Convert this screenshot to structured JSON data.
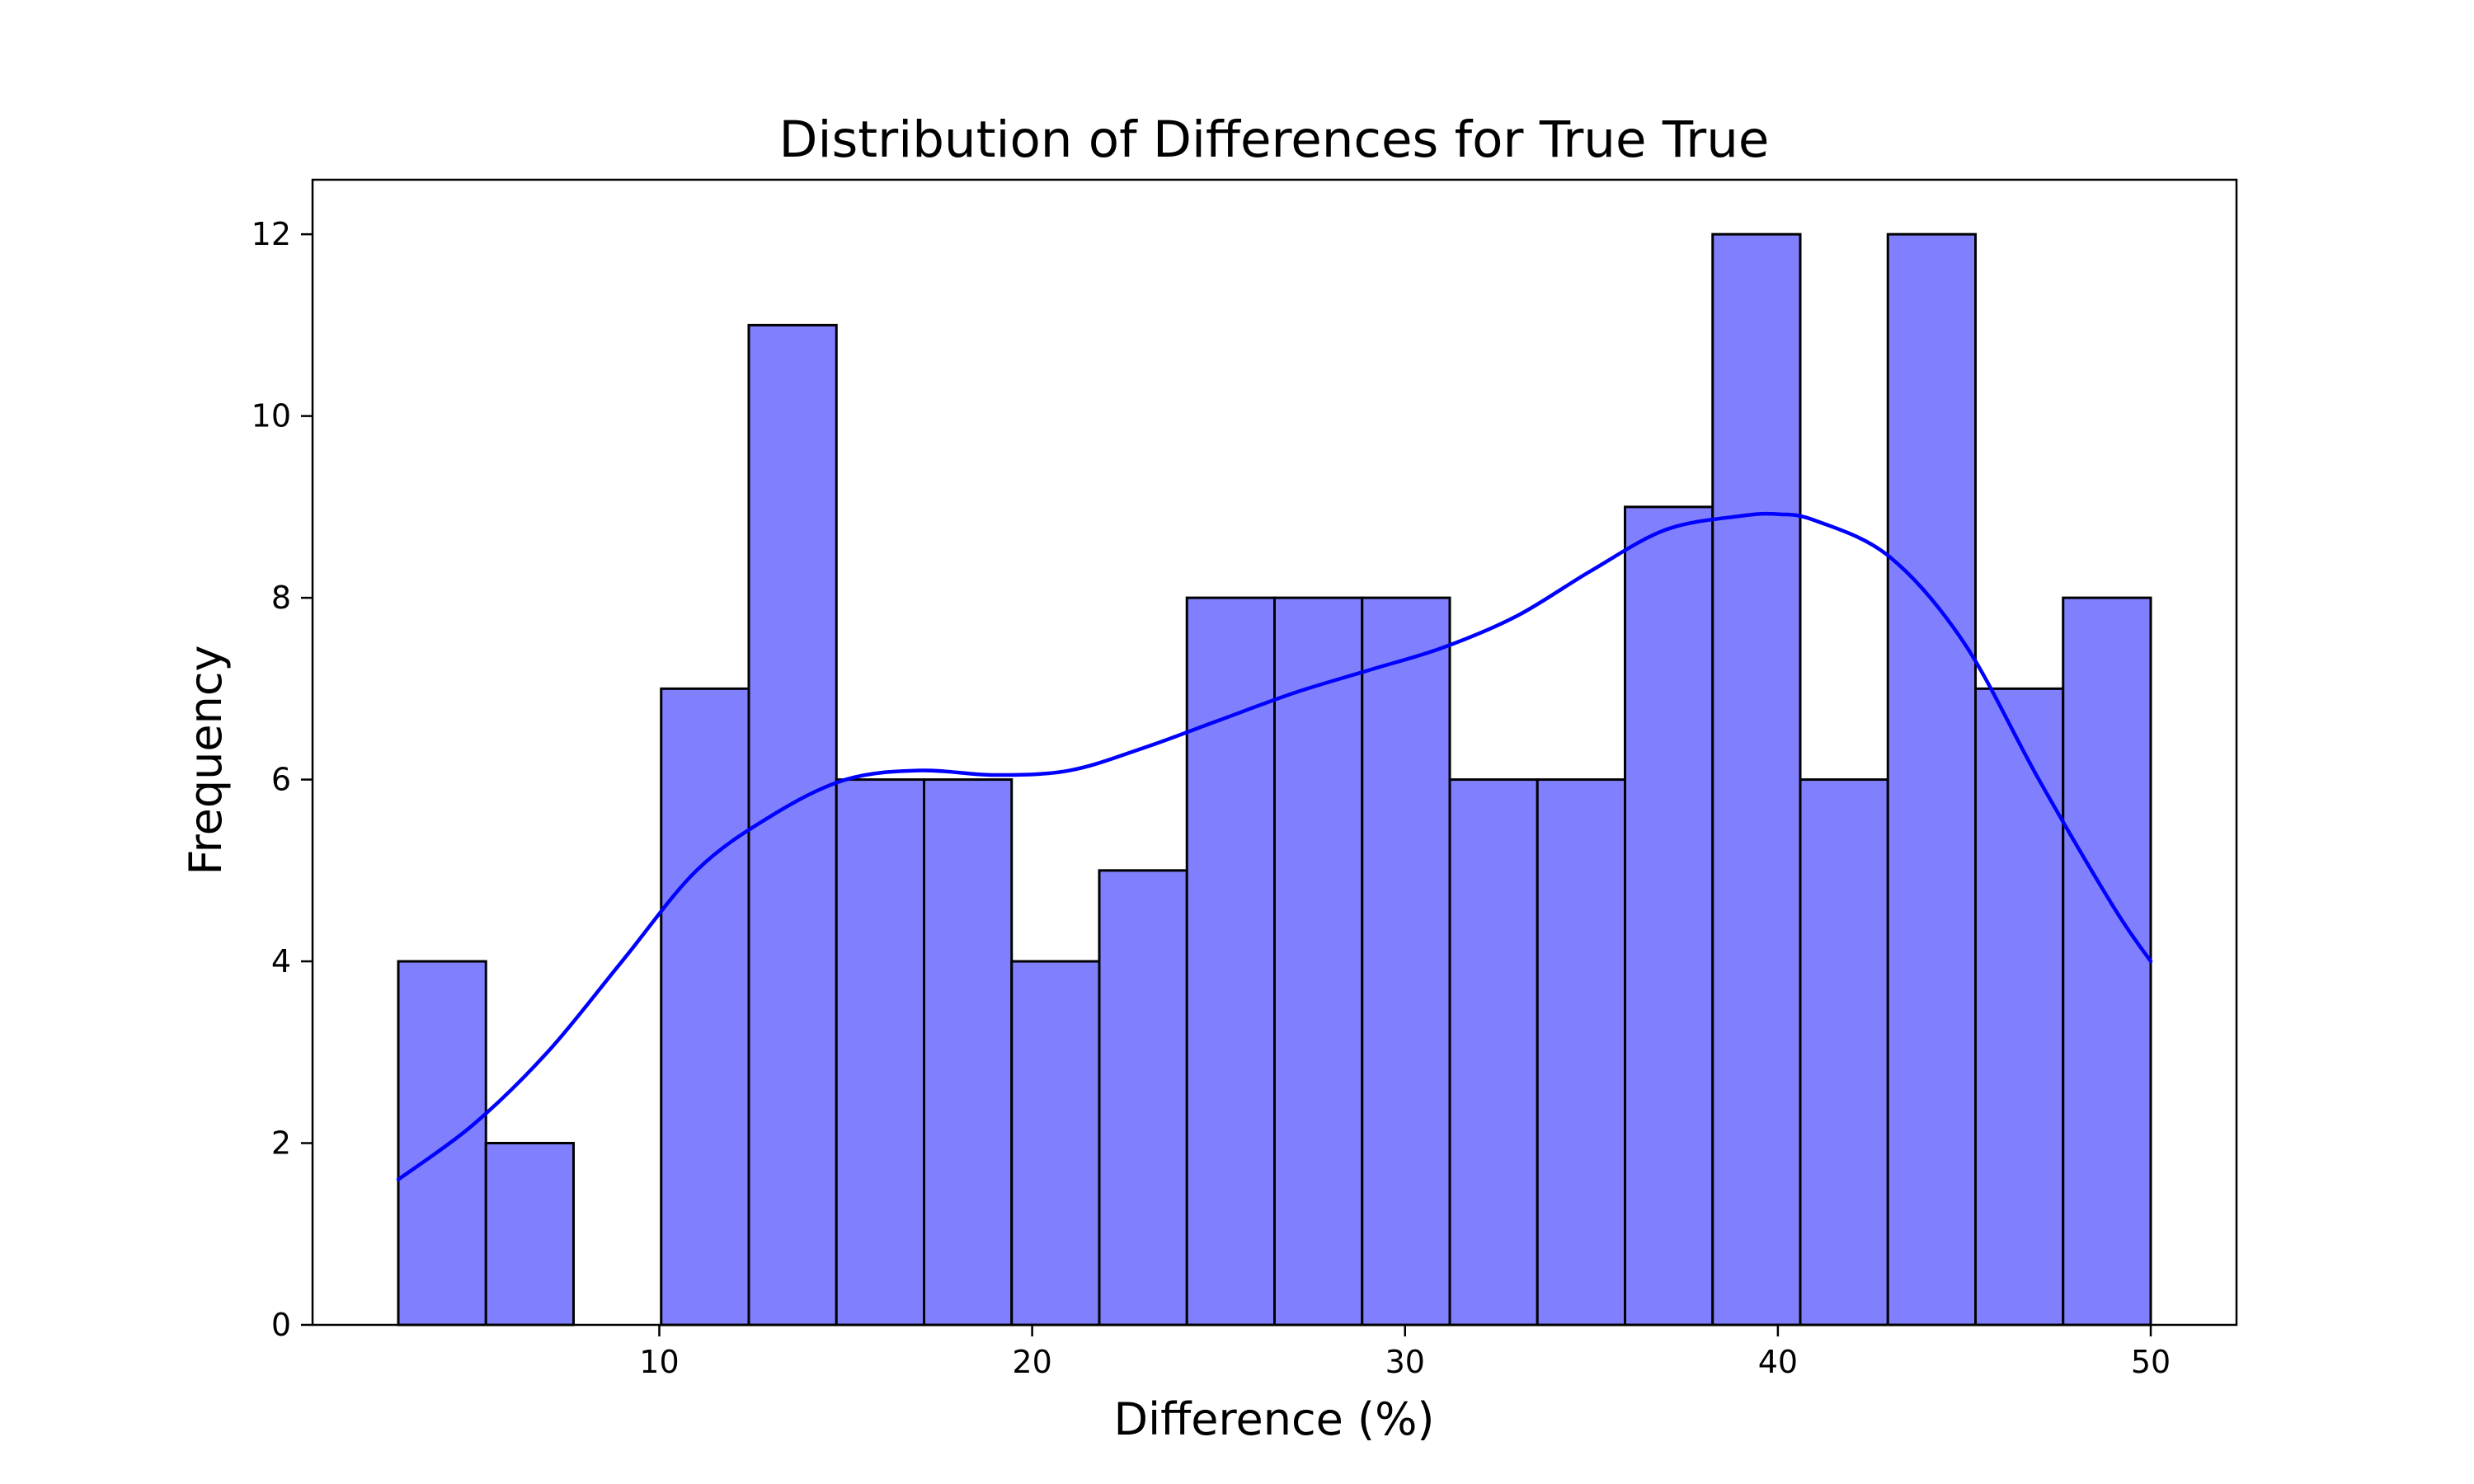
{
  "chart_data": {
    "type": "bar",
    "title": "Distribution of Differences for True True",
    "xlabel": "Difference (%)",
    "ylabel": "Frequency",
    "xlim": [
      0.7,
      52.3
    ],
    "ylim": [
      0,
      12.6
    ],
    "x_ticks": [
      10,
      20,
      30,
      40,
      50
    ],
    "y_ticks": [
      0,
      2,
      4,
      6,
      8,
      10,
      12
    ],
    "grid": false,
    "bins": [
      {
        "start": 3.0,
        "end": 5.35,
        "count": 4
      },
      {
        "start": 5.35,
        "end": 7.7,
        "count": 2
      },
      {
        "start": 7.7,
        "end": 10.05,
        "count": 0
      },
      {
        "start": 10.05,
        "end": 12.4,
        "count": 7
      },
      {
        "start": 12.4,
        "end": 14.75,
        "count": 11
      },
      {
        "start": 14.75,
        "end": 17.1,
        "count": 6
      },
      {
        "start": 17.1,
        "end": 19.45,
        "count": 6
      },
      {
        "start": 19.45,
        "end": 21.8,
        "count": 4
      },
      {
        "start": 21.8,
        "end": 24.15,
        "count": 5
      },
      {
        "start": 24.15,
        "end": 26.5,
        "count": 8
      },
      {
        "start": 26.5,
        "end": 28.85,
        "count": 8
      },
      {
        "start": 28.85,
        "end": 31.2,
        "count": 8
      },
      {
        "start": 31.2,
        "end": 33.55,
        "count": 6
      },
      {
        "start": 33.55,
        "end": 35.9,
        "count": 6
      },
      {
        "start": 35.9,
        "end": 38.25,
        "count": 9
      },
      {
        "start": 38.25,
        "end": 40.6,
        "count": 12
      },
      {
        "start": 40.6,
        "end": 42.95,
        "count": 6
      },
      {
        "start": 42.95,
        "end": 45.3,
        "count": 12
      },
      {
        "start": 45.3,
        "end": 47.65,
        "count": 7
      },
      {
        "start": 47.65,
        "end": 50.0,
        "count": 8
      }
    ],
    "kde": {
      "x": [
        3,
        5,
        7,
        9,
        11,
        13,
        15,
        17,
        19,
        21,
        23,
        25,
        27,
        29,
        31,
        33,
        35,
        37,
        39,
        40,
        41,
        43,
        45,
        47,
        49,
        50
      ],
      "y": [
        1.6,
        2.2,
        3.0,
        4.0,
        5.0,
        5.6,
        6.0,
        6.1,
        6.05,
        6.1,
        6.35,
        6.65,
        6.95,
        7.2,
        7.45,
        7.8,
        8.3,
        8.75,
        8.9,
        8.92,
        8.85,
        8.45,
        7.5,
        6.0,
        4.6,
        4.0
      ]
    },
    "colors": {
      "bar_fill": "#8080ff",
      "bar_edge": "#000000",
      "kde_line": "#0000ff",
      "axes": "#000000",
      "background": "#ffffff"
    }
  }
}
